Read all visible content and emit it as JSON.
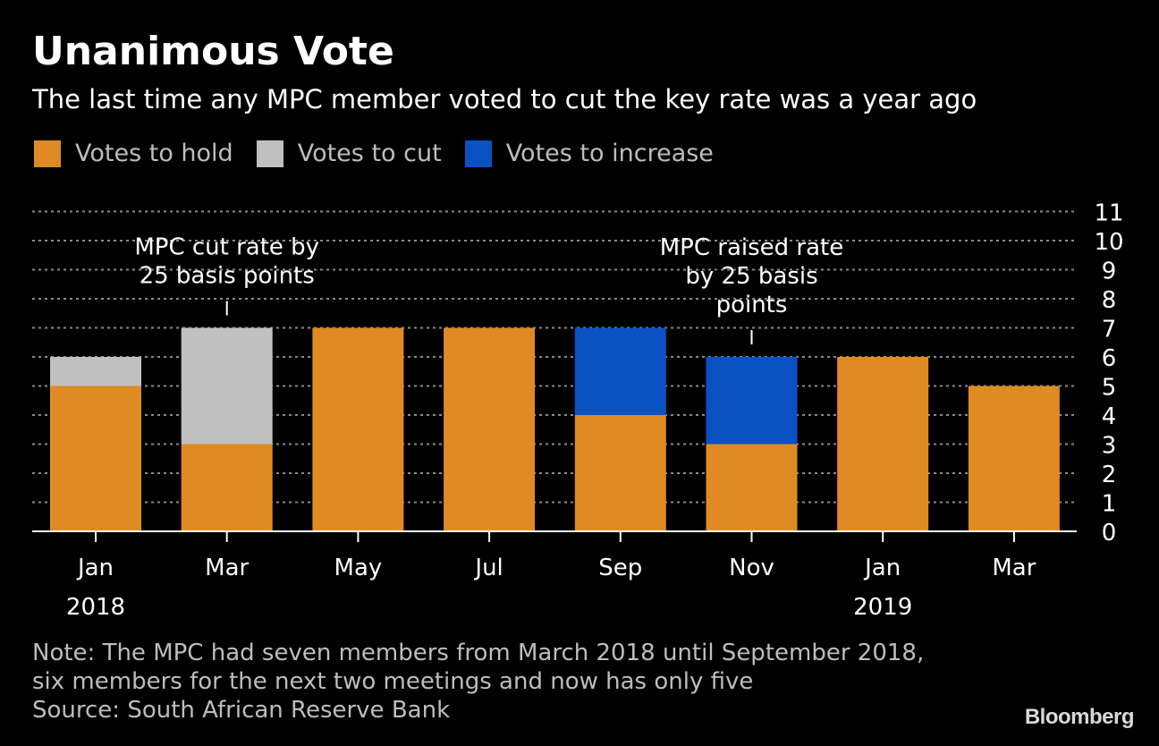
{
  "title": "Unanimous Vote",
  "subtitle": "The last time any MPC member voted to cut the key rate was a year ago",
  "legend": [
    {
      "label": "Votes to hold",
      "color": "#e08a24"
    },
    {
      "label": "Votes to cut",
      "color": "#c0c0c0"
    },
    {
      "label": "Votes to increase",
      "color": "#0a52c4"
    }
  ],
  "chart_data": {
    "type": "bar",
    "stacked": true,
    "categories": [
      "Jan",
      "Mar",
      "May",
      "Jul",
      "Sep",
      "Nov",
      "Jan",
      "Mar"
    ],
    "year_labels": [
      {
        "category_index": 0,
        "label": "2018"
      },
      {
        "category_index": 6,
        "label": "2019"
      }
    ],
    "series": [
      {
        "name": "Votes to hold",
        "color": "#e08a24",
        "values": [
          5,
          3,
          7,
          7,
          4,
          3,
          6,
          5
        ]
      },
      {
        "name": "Votes to cut",
        "color": "#c0c0c0",
        "values": [
          1,
          4,
          0,
          0,
          0,
          0,
          0,
          0
        ]
      },
      {
        "name": "Votes to increase",
        "color": "#0a52c4",
        "values": [
          0,
          0,
          0,
          0,
          3,
          3,
          0,
          0
        ]
      }
    ],
    "ylim": [
      0,
      11
    ],
    "yticks": [
      0,
      1,
      2,
      3,
      4,
      5,
      6,
      7,
      8,
      9,
      10,
      11
    ],
    "y_axis_side": "right",
    "grid": true,
    "annotations": [
      {
        "category_index": 1,
        "lines": [
          "MPC cut rate by",
          "25 basis points"
        ]
      },
      {
        "category_index": 5,
        "lines": [
          "MPC raised rate",
          "by 25 basis",
          "points"
        ]
      }
    ]
  },
  "note": {
    "lines": [
      "Note: The MPC had seven members from March 2018 until September 2018,",
      "six members for the next two meetings and now has only five",
      "Source: South African Reserve Bank"
    ]
  },
  "brand": "Bloomberg"
}
